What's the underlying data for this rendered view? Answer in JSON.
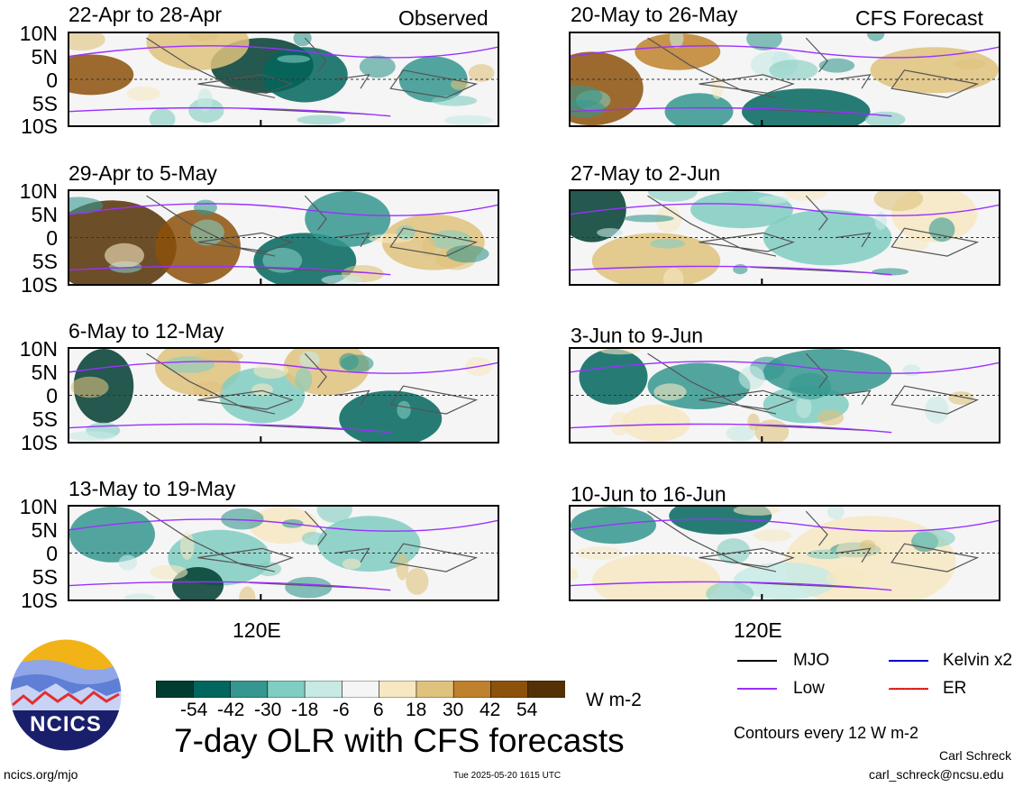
{
  "header": {
    "observed_label": "Observed",
    "forecast_label": "CFS Forecast"
  },
  "lat_labels": [
    "10N",
    "5N",
    "0",
    "5S",
    "10S"
  ],
  "panels": [
    {
      "title": "22-Apr to 28-Apr"
    },
    {
      "title": "20-May to 26-May"
    },
    {
      "title": "29-Apr to 5-May"
    },
    {
      "title": "27-May to 2-Jun"
    },
    {
      "title": "6-May to 12-May"
    },
    {
      "title": "3-Jun to 9-Jun"
    },
    {
      "title": "13-May to 19-May"
    },
    {
      "title": "10-Jun to 16-Jun"
    }
  ],
  "x_tick": "120E",
  "colorbar": {
    "labels": [
      "-54",
      "-42",
      "-30",
      "-18",
      "-6",
      "6",
      "18",
      "30",
      "42",
      "54"
    ],
    "units": "W m-2",
    "colors": [
      "#003c30",
      "#01665e",
      "#35978f",
      "#80cdc1",
      "#c7eae5",
      "#f5f5f5",
      "#f6e8c3",
      "#dfc27d",
      "#bf812d",
      "#8c510a",
      "#543005"
    ]
  },
  "legend": {
    "mjo": "MJO",
    "low": "Low",
    "kelvin": "Kelvin x2",
    "er": "ER",
    "colors": {
      "mjo": "#000000",
      "low": "#9b30ff",
      "kelvin": "#0000cc",
      "er": "#cc0000"
    }
  },
  "title": "7-day OLR with CFS forecasts",
  "contour_note": "Contours every 12 W m-2",
  "footer": {
    "url": "ncics.org/mjo",
    "timestamp": "Tue 2025-05-20 1615 UTC",
    "author": "Carl Schreck",
    "email": "carl_schreck@ncsu.edu",
    "logo_text": "NCICS"
  }
}
